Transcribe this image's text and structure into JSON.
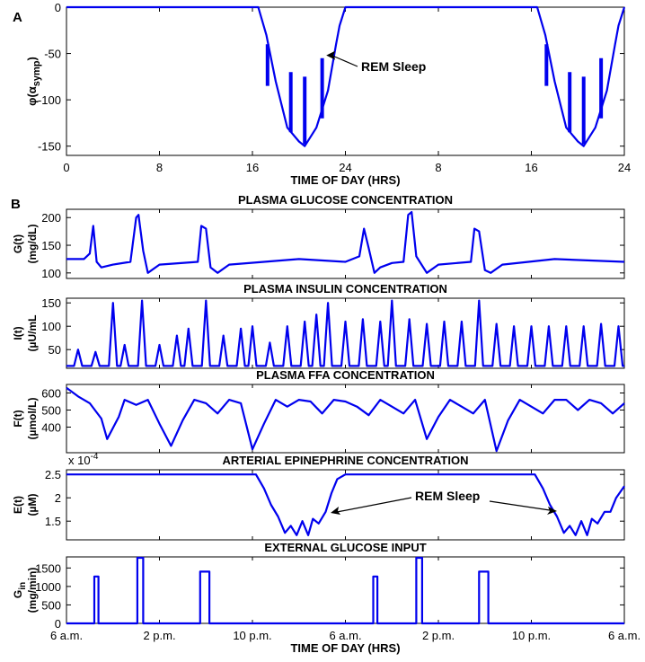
{
  "chart_data": [
    {
      "panel": "A",
      "type": "line",
      "title": "",
      "ylabel_main": "φ(α",
      "ylabel_sub": "symp",
      "ylabel_end": ")",
      "xlabel": "TIME OF DAY (HRS)",
      "xticks": [
        "0",
        "8",
        "16",
        "24",
        "8",
        "16",
        "24"
      ],
      "xlim": [
        0,
        48
      ],
      "ylim": [
        -160,
        0
      ],
      "yticks": [
        "0",
        "-50",
        "-100",
        "-150"
      ],
      "annotation": "REM Sleep",
      "series": [
        {
          "x": [
            0,
            16.5,
            17.2,
            18,
            19,
            20,
            20.5,
            21.5,
            22.5,
            23.2,
            23.5,
            24,
            40.5,
            41.2,
            42,
            43,
            44,
            44.5,
            45.5,
            46.5,
            47.2,
            47.5,
            48
          ],
          "y": [
            0,
            0,
            -30,
            -80,
            -130,
            -145,
            -150,
            -130,
            -90,
            -40,
            -20,
            0,
            0,
            -30,
            -80,
            -130,
            -145,
            -150,
            -130,
            -90,
            -40,
            -20,
            0
          ],
          "spikes": [
            {
              "x": 17.3,
              "y": -40,
              "to": -85
            },
            {
              "x": 19.3,
              "y": -70,
              "to": -135
            },
            {
              "x": 20.5,
              "y": -75,
              "to": -148
            },
            {
              "x": 22.0,
              "y": -55,
              "to": -120
            },
            {
              "x": 41.3,
              "y": -40,
              "to": -85
            },
            {
              "x": 43.3,
              "y": -70,
              "to": -135
            },
            {
              "x": 44.5,
              "y": -75,
              "to": -148
            },
            {
              "x": 46.0,
              "y": -55,
              "to": -120
            }
          ]
        }
      ]
    },
    {
      "panel": "B",
      "type": "line",
      "xlabel": "TIME OF DAY (HRS)",
      "xticks": [
        "6 a.m.",
        "2 p.m.",
        "10 p.m.",
        "6 a.m.",
        "2 p.m.",
        "10 p.m.",
        "6 a.m."
      ],
      "xlim": [
        0,
        48
      ],
      "subplots": [
        {
          "title": "PLASMA GLUCOSE CONCENTRATION",
          "ylabel": [
            "G(t)",
            "(mg/dL)"
          ],
          "ylim": [
            90,
            215
          ],
          "yticks": [
            "100",
            "150",
            "200"
          ],
          "series": [
            {
              "x": [
                0,
                1.5,
                2,
                2.3,
                2.6,
                3,
                4,
                5.5,
                6,
                6.2,
                6.6,
                7,
                8,
                11.3,
                11.6,
                12,
                12.4,
                13,
                14,
                20,
                24,
                25.2,
                25.6,
                26,
                26.5,
                27,
                28,
                29,
                29.4,
                29.7,
                30.1,
                31,
                32,
                34.8,
                35.1,
                35.5,
                36,
                36.5,
                37.5,
                42,
                48
              ],
              "y": [
                125,
                125,
                135,
                185,
                120,
                110,
                115,
                120,
                200,
                205,
                140,
                100,
                115,
                120,
                185,
                180,
                110,
                100,
                115,
                125,
                120,
                130,
                180,
                145,
                100,
                110,
                118,
                120,
                205,
                210,
                130,
                100,
                115,
                120,
                180,
                175,
                105,
                100,
                115,
                125,
                120
              ]
            }
          ]
        },
        {
          "title": "PLASMA INSULIN CONCENTRATION",
          "ylabel": [
            "I(t)",
            "(µU/mL"
          ],
          "ylim": [
            10,
            160
          ],
          "yticks": [
            "50",
            "100",
            "150"
          ],
          "series": [
            {
              "spikes_x": [
                1,
                2.5,
                4,
                5,
                6.5,
                8,
                9.5,
                10.5,
                12,
                13.5,
                15,
                16,
                17.5,
                19,
                20.5,
                21.5,
                22.5,
                24,
                25.5,
                27,
                28,
                29.5,
                31,
                32.5,
                34,
                35.5,
                37,
                38.5,
                40,
                41.5,
                43,
                44.5,
                46,
                47.5
              ],
              "spikes_y": [
                50,
                45,
                150,
                60,
                155,
                60,
                80,
                95,
                155,
                80,
                95,
                100,
                65,
                100,
                110,
                125,
                150,
                110,
                115,
                110,
                155,
                115,
                105,
                110,
                110,
                155,
                105,
                100,
                100,
                100,
                100,
                100,
                105,
                100
              ],
              "baseline": 15
            }
          ]
        },
        {
          "title": "PLASMA FFA CONCENTRATION",
          "ylabel": [
            "F(t)",
            "(µmol/L)"
          ],
          "ylim": [
            250,
            650
          ],
          "yticks": [
            "400",
            "500",
            "600"
          ],
          "series": [
            {
              "x": [
                0,
                1,
                2,
                3,
                3.5,
                4.5,
                5,
                6,
                7,
                8,
                9,
                10,
                11,
                12,
                13,
                14,
                15,
                16,
                17,
                18,
                19,
                20,
                21,
                22,
                23,
                24,
                25,
                26,
                27,
                28,
                29,
                30,
                31,
                32,
                33,
                34,
                35,
                36,
                37,
                38,
                39,
                40,
                41,
                42,
                43,
                44,
                45,
                46,
                47,
                48
              ],
              "y": [
                630,
                580,
                540,
                450,
                330,
                460,
                560,
                530,
                560,
                420,
                290,
                440,
                560,
                540,
                480,
                560,
                540,
                270,
                420,
                560,
                520,
                560,
                550,
                480,
                560,
                550,
                520,
                470,
                560,
                520,
                480,
                560,
                330,
                460,
                560,
                520,
                480,
                560,
                260,
                440,
                560,
                520,
                480,
                560,
                560,
                500,
                560,
                540,
                480,
                540
              ]
            }
          ]
        },
        {
          "title": "ARTERIAL EPINEPHRINE CONCENTRATION",
          "multiplier": "x 10",
          "multiplier_exp": "-4",
          "ylabel": [
            "E(t)",
            "(µM)"
          ],
          "ylim": [
            1.1,
            2.6
          ],
          "yticks": [
            "1.5",
            "2",
            "2.5"
          ],
          "annotation": "REM Sleep",
          "series": [
            {
              "x": [
                0,
                16.3,
                17,
                17.6,
                18.2,
                18.8,
                19.3,
                19.8,
                20.3,
                20.8,
                21.2,
                21.7,
                22.3,
                22.8,
                23.3,
                24,
                24.5,
                40.3,
                41,
                41.6,
                42.2,
                42.8,
                43.3,
                43.8,
                44.3,
                44.8,
                45.2,
                45.7,
                46.3,
                46.8,
                47.3,
                48
              ],
              "y": [
                2.5,
                2.5,
                2.2,
                1.85,
                1.6,
                1.25,
                1.4,
                1.2,
                1.5,
                1.2,
                1.55,
                1.45,
                1.7,
                2.1,
                2.4,
                2.5,
                2.5,
                2.5,
                2.2,
                1.85,
                1.6,
                1.25,
                1.4,
                1.2,
                1.5,
                1.2,
                1.55,
                1.45,
                1.7,
                1.7,
                2.0,
                2.25
              ]
            }
          ]
        },
        {
          "title": "EXTERNAL GLUCOSE INPUT",
          "ylabel_main": "G",
          "ylabel_sub": "in",
          "ylabel2": "(mg/min)",
          "ylim": [
            0,
            1800
          ],
          "yticks": [
            "0",
            "500",
            "1000",
            "1500"
          ],
          "series": [
            {
              "pulses": [
                {
                  "x": 2.4,
                  "w": 0.35,
                  "h": 1270
                },
                {
                  "x": 6.1,
                  "w": 0.5,
                  "h": 1780
                },
                {
                  "x": 11.5,
                  "w": 0.8,
                  "h": 1400
                },
                {
                  "x": 26.4,
                  "w": 0.35,
                  "h": 1270
                },
                {
                  "x": 30.1,
                  "w": 0.5,
                  "h": 1780
                },
                {
                  "x": 35.5,
                  "w": 0.8,
                  "h": 1400
                }
              ]
            }
          ]
        }
      ]
    }
  ]
}
